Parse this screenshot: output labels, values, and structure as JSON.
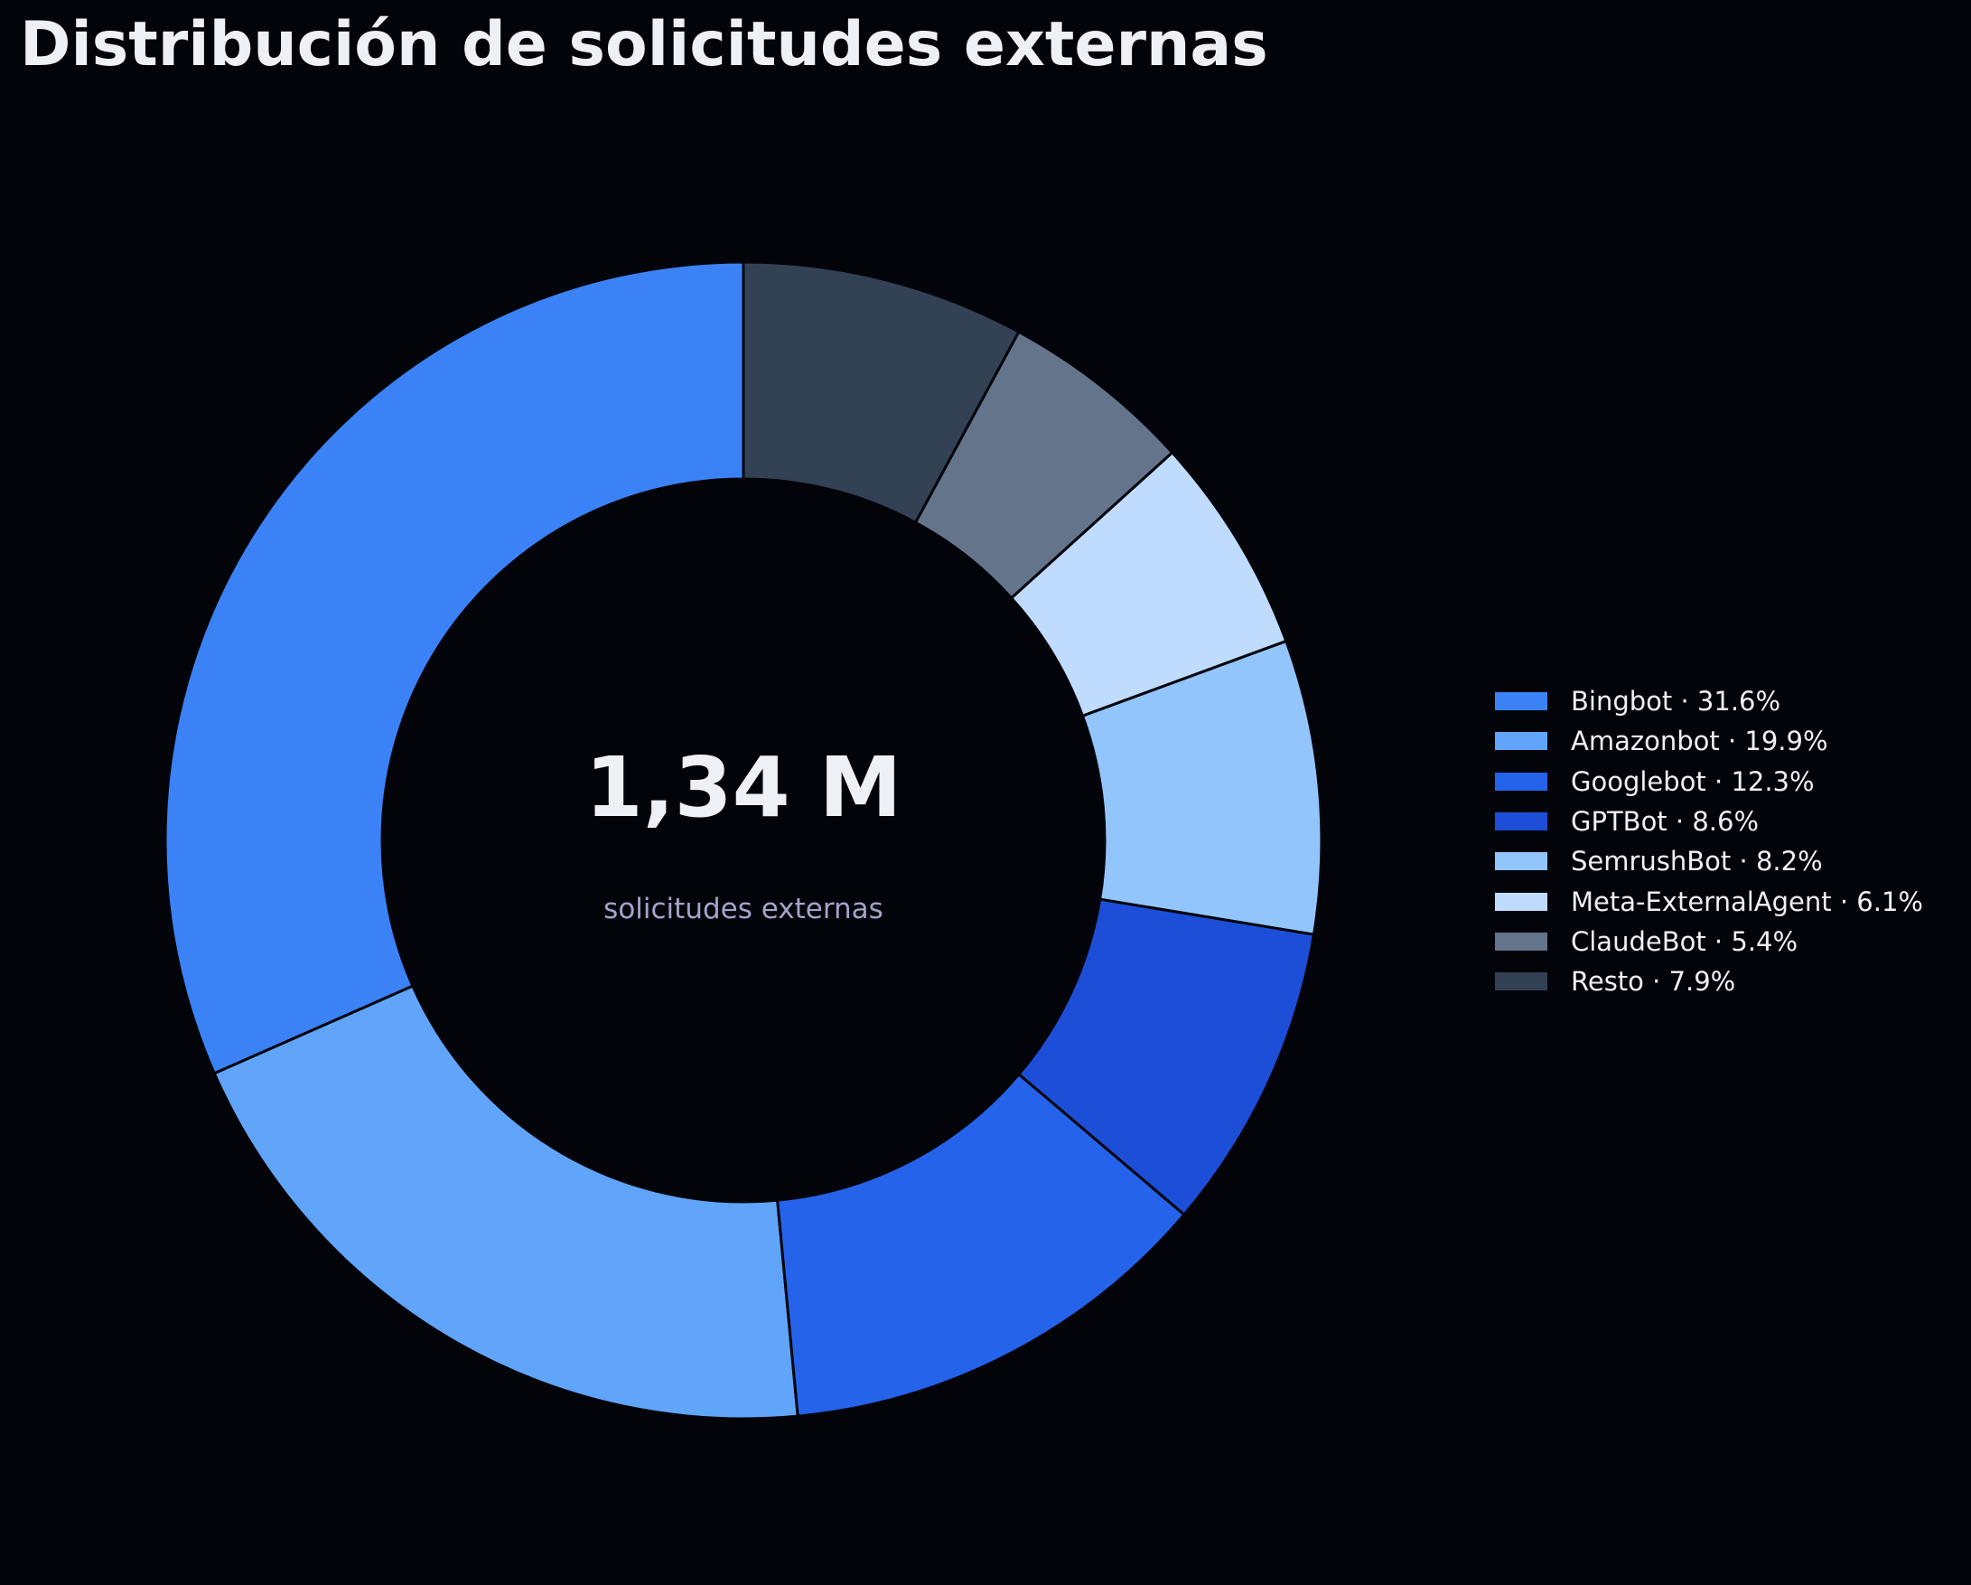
{
  "colors": {
    "background": "#03040a",
    "text": "#eef0f6",
    "subtext": "#a6a3c9",
    "slice_border": "#03040a"
  },
  "chart_data": {
    "type": "pie",
    "title": "Distribución de solicitudes externas",
    "center_value": "1,34 M",
    "center_label": "solicitudes externas",
    "legend_position": "right",
    "unit": "%",
    "start_angle_deg": 90,
    "direction": "counterclockwise",
    "slices": [
      {
        "label": "Bingbot · 31.6%",
        "name": "Bingbot",
        "value": 31.6,
        "color": "#3b82f6"
      },
      {
        "label": "Amazonbot · 19.9%",
        "name": "Amazonbot",
        "value": 19.9,
        "color": "#60a5fa"
      },
      {
        "label": "Googlebot · 12.3%",
        "name": "Googlebot",
        "value": 12.3,
        "color": "#2563eb"
      },
      {
        "label": "GPTBot · 8.6%",
        "name": "GPTBot",
        "value": 8.6,
        "color": "#1d4ed8"
      },
      {
        "label": "SemrushBot · 8.2%",
        "name": "SemrushBot",
        "value": 8.2,
        "color": "#93c5fd"
      },
      {
        "label": "Meta-ExternalAgent · 6.1%",
        "name": "Meta-ExternalAgent",
        "value": 6.1,
        "color": "#bfdbfe"
      },
      {
        "label": "ClaudeBot · 5.4%",
        "name": "ClaudeBot",
        "value": 5.4,
        "color": "#64748b"
      },
      {
        "label": "Resto · 7.9%",
        "name": "Resto",
        "value": 7.9,
        "color": "#334155"
      }
    ]
  }
}
